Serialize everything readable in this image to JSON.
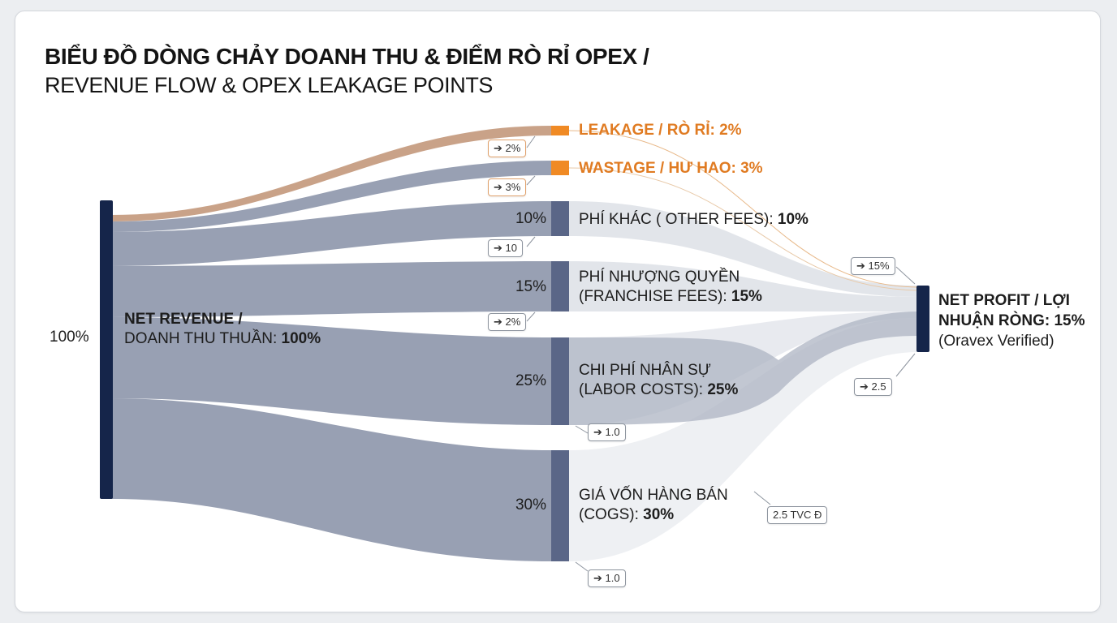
{
  "title": {
    "line1": "BIỂU ĐỒ DÒNG CHẢY DOANH THU & ĐIỂM RÒ RỈ OPEX /",
    "line2": "REVENUE FLOW & OPEX LEAKAGE POINTS"
  },
  "source": {
    "left_pct": "100%",
    "name_bold": "NET REVENUE /",
    "name_rest": "DOANH THU THUẦN: ",
    "value": "100%"
  },
  "nodes": [
    {
      "id": "leakage",
      "label": "LEAKAGE / RÒ RỈ: 2%",
      "value": 2,
      "pct": ""
    },
    {
      "id": "wastage",
      "label": "WASTAGE / HƯ HAO: 3%",
      "value": 3,
      "pct": ""
    },
    {
      "id": "other",
      "line1": "PHÍ KHÁC ( OTHER FEES): ",
      "value_text": "10%",
      "value": 10,
      "pct": "10%"
    },
    {
      "id": "franchise",
      "line1": "PHÍ NHƯỢNG QUYỀN",
      "line2": "(FRANCHISE FEES): ",
      "value_text": "15%",
      "value": 15,
      "pct": "15%"
    },
    {
      "id": "labor",
      "line1": "CHI PHÍ NHÂN SỰ",
      "line2": "(LABOR COSTS): ",
      "value_text": "25%",
      "value": 25,
      "pct": "25%"
    },
    {
      "id": "cogs",
      "line1": "GIÁ VỐN HÀNG BÁN",
      "line2": "(COGS): ",
      "value_text": "30%",
      "value": 30,
      "pct": "30%"
    }
  ],
  "target": {
    "line1": "NET PROFIT / LỢI",
    "line2": "NHUẬN RÒNG: 15%",
    "line3": "(Oravex Verified)",
    "value": 15
  },
  "callouts": {
    "leakage": "➔ 2%",
    "wastage": "➔ 3%",
    "other": "➔ 10",
    "franchise": "➔ 2%",
    "labor": "➔ 1.0",
    "cogs": "➔ 1.0",
    "profit_top": "➔ 15%",
    "profit_mid": "➔ 2.5",
    "cogs_link": "2.5 TVC Đ"
  },
  "colors": {
    "source_bar": "#15254a",
    "flow": "#8f98ad",
    "node_bar": "#5a6687",
    "leak_node": "#f08a24",
    "leak_flow": "#c49a7e",
    "profit_flow": "#dcdfe6",
    "target_bar": "#15254a"
  }
}
